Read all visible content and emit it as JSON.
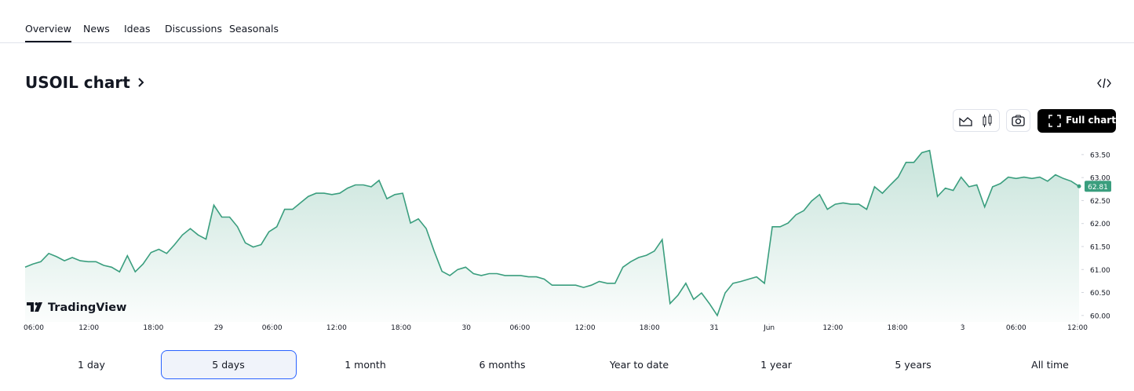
{
  "nav": {
    "tabs": [
      "Overview",
      "News",
      "Ideas",
      "Discussions",
      "Seasonals"
    ],
    "active": 0
  },
  "header": {
    "title": "USOIL chart"
  },
  "toolbar": {
    "full_chart": "Full chart"
  },
  "chart_data": {
    "type": "line",
    "watermark": "TradingView",
    "series": [
      {
        "name": "USOIL",
        "color": "#3a9e7e",
        "values": [
          61.05,
          61.12,
          61.17,
          61.35,
          61.28,
          61.19,
          61.26,
          61.19,
          61.17,
          61.17,
          61.09,
          61.05,
          60.95,
          61.3,
          60.95,
          61.12,
          61.37,
          61.44,
          61.35,
          61.54,
          61.75,
          61.89,
          61.75,
          61.66,
          62.4,
          62.14,
          62.14,
          61.93,
          61.58,
          61.49,
          61.54,
          61.82,
          61.93,
          62.31,
          62.31,
          62.45,
          62.59,
          62.66,
          62.66,
          62.63,
          62.66,
          62.77,
          62.84,
          62.84,
          62.8,
          62.94,
          62.54,
          62.63,
          62.66,
          62.01,
          62.1,
          61.89,
          61.4,
          60.96,
          60.87,
          61.0,
          61.05,
          60.91,
          60.87,
          60.91,
          60.91,
          60.87,
          60.87,
          60.87,
          60.84,
          60.84,
          60.79,
          60.66,
          60.66,
          60.66,
          60.66,
          60.61,
          60.66,
          60.74,
          60.7,
          60.7,
          61.05,
          61.17,
          61.26,
          61.31,
          61.4,
          61.65,
          60.26,
          60.44,
          60.7,
          60.35,
          60.49,
          60.26,
          60.0,
          60.49,
          60.7,
          60.74,
          60.79,
          60.84,
          60.7,
          61.93,
          61.93,
          62.01,
          62.19,
          62.28,
          62.49,
          62.63,
          62.31,
          62.42,
          62.45,
          62.42,
          62.42,
          62.31,
          62.8,
          62.66,
          62.84,
          63.01,
          63.33,
          63.33,
          63.54,
          63.59,
          62.59,
          62.77,
          62.72,
          63.01,
          62.8,
          62.84,
          62.36,
          62.8,
          62.87,
          63.01,
          62.98,
          63.01,
          62.98,
          63.01,
          62.92,
          63.06,
          62.98,
          62.92,
          62.81
        ]
      }
    ],
    "xlim": [
      0,
      134
    ],
    "xticks": [
      {
        "value": 1.1,
        "label": "06:00"
      },
      {
        "value": 8.1,
        "label": "12:00"
      },
      {
        "value": 16.3,
        "label": "18:00"
      },
      {
        "value": 24.6,
        "label": "29"
      },
      {
        "value": 31.4,
        "label": "06:00"
      },
      {
        "value": 39.6,
        "label": "12:00"
      },
      {
        "value": 47.8,
        "label": "18:00"
      },
      {
        "value": 56.1,
        "label": "30"
      },
      {
        "value": 62.9,
        "label": "06:00"
      },
      {
        "value": 71.2,
        "label": "12:00"
      },
      {
        "value": 79.4,
        "label": "18:00"
      },
      {
        "value": 87.6,
        "label": "31"
      },
      {
        "value": 94.6,
        "label": "Jun"
      },
      {
        "value": 102.7,
        "label": "12:00"
      },
      {
        "value": 110.9,
        "label": "18:00"
      },
      {
        "value": 119.2,
        "label": "3"
      },
      {
        "value": 126,
        "label": "06:00"
      },
      {
        "value": 133.8,
        "label": "12:00"
      }
    ],
    "ylim": [
      59.86,
      63.72
    ],
    "yticks": [
      {
        "value": 60,
        "label": "60.00"
      },
      {
        "value": 60.5,
        "label": "60.50"
      },
      {
        "value": 61,
        "label": "61.00"
      },
      {
        "value": 61.5,
        "label": "61.50"
      },
      {
        "value": 62,
        "label": "62.00"
      },
      {
        "value": 62.5,
        "label": "62.50"
      },
      {
        "value": 63,
        "label": "63.00"
      },
      {
        "value": 63.5,
        "label": "63.50"
      }
    ]
  },
  "ranges": {
    "options": [
      "1 day",
      "5 days",
      "1 month",
      "6 months",
      "Year to date",
      "1 year",
      "5 years",
      "All time"
    ],
    "selected": 1
  }
}
